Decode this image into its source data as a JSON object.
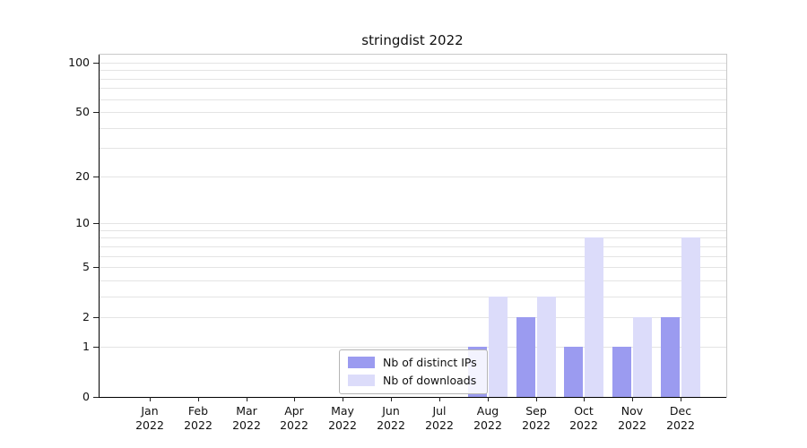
{
  "chart_data": {
    "type": "bar",
    "title": "stringdist 2022",
    "xlabel": "",
    "ylabel": "",
    "year": "2022",
    "categories": [
      "Jan",
      "Feb",
      "Mar",
      "Apr",
      "May",
      "Jun",
      "Jul",
      "Aug",
      "Sep",
      "Oct",
      "Nov",
      "Dec"
    ],
    "series": [
      {
        "name": "Nb of distinct IPs",
        "color": "#9b9bf0",
        "values": [
          0,
          0,
          0,
          0,
          0,
          0,
          0,
          1,
          2,
          1,
          1,
          2
        ]
      },
      {
        "name": "Nb of downloads",
        "color": "#dcdcfa",
        "values": [
          0,
          0,
          0,
          0,
          0,
          0,
          0,
          3,
          3,
          8,
          2,
          8
        ]
      }
    ],
    "yscale": "log1p",
    "ylim": [
      0,
      113
    ],
    "yticks": [
      0,
      1,
      2,
      5,
      10,
      20,
      50,
      100
    ],
    "gridline_values": [
      1,
      2,
      3,
      4,
      5,
      6,
      7,
      8,
      9,
      10,
      20,
      30,
      40,
      50,
      60,
      70,
      80,
      90,
      100
    ],
    "grid": "horizontal",
    "legend_position": "lower-center-inside",
    "background_color": "#ffffff"
  }
}
